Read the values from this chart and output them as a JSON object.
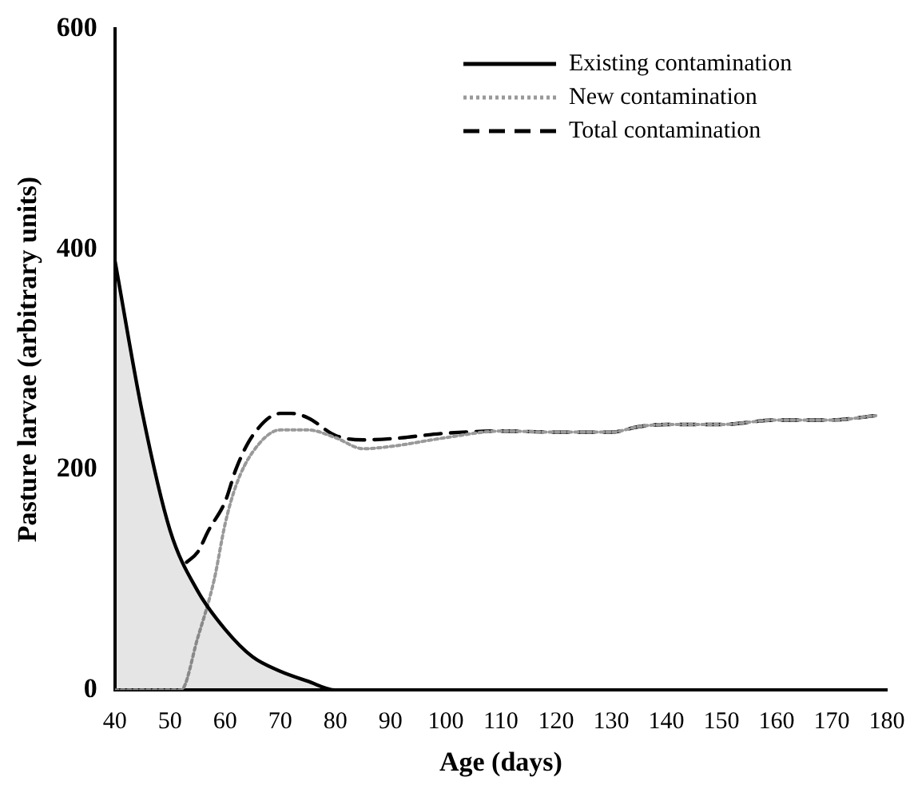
{
  "chart_data": {
    "type": "line",
    "xlabel": "Age (days)",
    "ylabel": "Pasture larvae (arbitrary units)",
    "xlim": [
      40,
      180
    ],
    "xticks": [
      40,
      50,
      60,
      70,
      80,
      90,
      100,
      110,
      120,
      130,
      140,
      150,
      160,
      170,
      180
    ],
    "ylim": [
      0,
      600
    ],
    "yticks": [
      0,
      200,
      400,
      600
    ],
    "grid": false,
    "legend": "top right",
    "marker": "none",
    "series": [
      {
        "name": "Existing contamination",
        "type": "area",
        "color": "#000000",
        "line_style": "solid",
        "x": [
          40,
          45,
          50,
          55,
          60,
          65,
          70,
          75,
          80,
          90,
          100,
          120,
          140,
          160,
          178
        ],
        "values": [
          390,
          251,
          145,
          90,
          55,
          30,
          17,
          8,
          0,
          0,
          0,
          0,
          0,
          0,
          0
        ]
      },
      {
        "name": "New contamination",
        "color": "#999999",
        "line_style": "dotted",
        "x": [
          40,
          45,
          50,
          52,
          55,
          58,
          60,
          62,
          65,
          70,
          75,
          80,
          85,
          90,
          100,
          110,
          120,
          130,
          135,
          140,
          150,
          160,
          170,
          178
        ],
        "values": [
          0,
          0,
          0,
          0,
          47,
          100,
          151,
          186,
          216,
          236,
          236,
          229,
          219,
          221,
          229,
          235,
          234,
          234,
          239,
          241,
          241,
          245,
          245,
          249
        ]
      },
      {
        "name": "Total contamination",
        "color": "#000000",
        "line_style": "dashed",
        "x": [
          53,
          55,
          57,
          60,
          62,
          65,
          70,
          72,
          75,
          80,
          85,
          90,
          100,
          110,
          120,
          130,
          135,
          140,
          150,
          160,
          170,
          178
        ],
        "values": [
          116,
          125,
          145,
          171,
          201,
          231,
          251,
          251,
          247,
          231,
          227,
          228,
          233,
          235,
          234,
          234,
          239,
          241,
          241,
          245,
          245,
          249
        ]
      }
    ]
  }
}
